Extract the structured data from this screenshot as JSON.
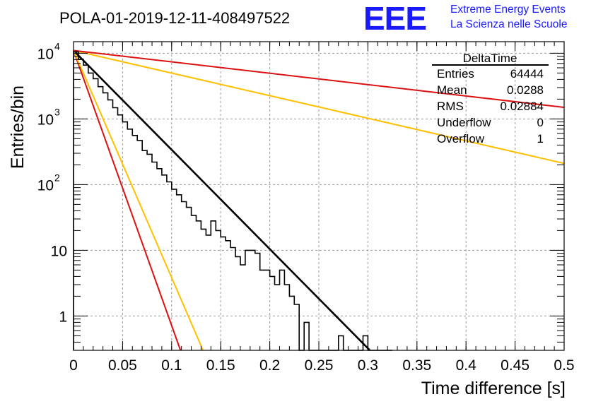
{
  "chart_data": {
    "type": "line",
    "title": "POLA-01-2019-12-11-408497522",
    "xlabel": "Time difference [s]",
    "ylabel": "Entries/bin",
    "xlim": [
      0,
      0.5
    ],
    "ylim": [
      0.3,
      15000
    ],
    "y_scale": "log",
    "grid": true,
    "x_ticks": [
      0,
      0.05,
      0.1,
      0.15,
      0.2,
      0.25,
      0.3,
      0.35,
      0.4,
      0.45,
      0.5
    ],
    "x_tick_labels": [
      "0",
      "0.05",
      "0.1",
      "0.15",
      "0.2",
      "0.25",
      "0.3",
      "0.35",
      "0.4",
      "0.45",
      "0.5"
    ],
    "y_ticks": [
      1,
      10,
      100,
      1000,
      10000
    ],
    "y_tick_labels": [
      {
        "base": "1",
        "exp": ""
      },
      {
        "base": "10",
        "exp": ""
      },
      {
        "base": "10",
        "exp": "2"
      },
      {
        "base": "10",
        "exp": "3"
      },
      {
        "base": "10",
        "exp": "4"
      }
    ],
    "histogram": {
      "bin_width": 0.005,
      "color": "#000000",
      "values": [
        10500,
        8100,
        6600,
        5000,
        4100,
        3100,
        2500,
        1950,
        1480,
        1150,
        900,
        700,
        560,
        470,
        330,
        290,
        220,
        175,
        140,
        110,
        85,
        70,
        55,
        45,
        34,
        28,
        21,
        17,
        28,
        20,
        16,
        14,
        11,
        8,
        6,
        10,
        10,
        9,
        5,
        5,
        4,
        3,
        5,
        3,
        2,
        1.5,
        0,
        0.8,
        0,
        0,
        0,
        0,
        0,
        0,
        0.5,
        0,
        0,
        0,
        0,
        0.5,
        0,
        0,
        0,
        0,
        0
      ]
    },
    "fits": [
      {
        "color": "#000000",
        "points": [
          [
            0,
            11000
          ],
          [
            0.302,
            0.3
          ]
        ]
      },
      {
        "color": "#dd1111",
        "points": [
          [
            0,
            11000
          ],
          [
            0.109,
            0.3
          ]
        ]
      },
      {
        "color": "#ffc000",
        "points": [
          [
            0,
            11000
          ],
          [
            0.132,
            0.3
          ]
        ]
      },
      {
        "color": "#ffc000",
        "points": [
          [
            0,
            11000
          ],
          [
            0.5,
            210
          ]
        ]
      },
      {
        "color": "#dd1111",
        "points": [
          [
            0,
            11000
          ],
          [
            0.5,
            1500
          ]
        ]
      }
    ],
    "stats_box": {
      "title": "DeltaTime",
      "rows": [
        {
          "label": "Entries",
          "value": "64444"
        },
        {
          "label": "Mean",
          "value": "0.0288"
        },
        {
          "label": "RMS",
          "value": "0.02884"
        },
        {
          "label": "Underflow",
          "value": "0"
        },
        {
          "label": "Overflow",
          "value": "1"
        }
      ]
    },
    "logo": {
      "text": "EEE",
      "line1": "Extreme Energy Events",
      "line2": "La Scienza nelle Scuole",
      "color": "#1a1aff"
    }
  }
}
